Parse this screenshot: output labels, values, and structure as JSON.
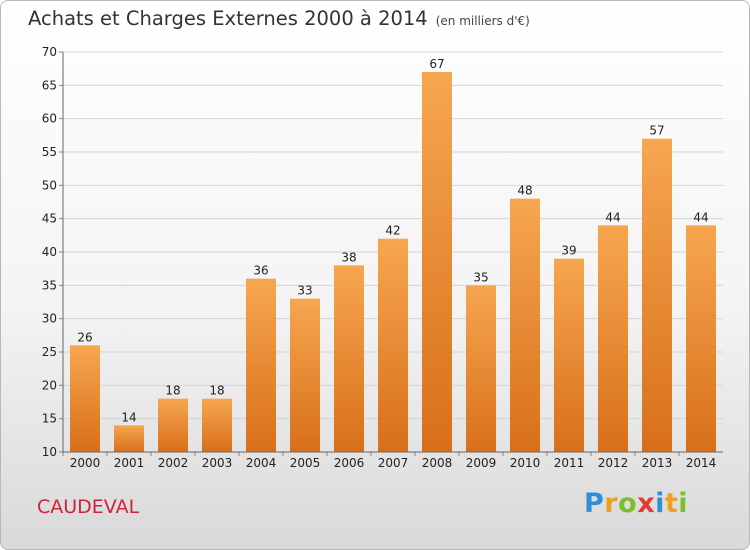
{
  "chart_data": {
    "type": "bar",
    "title": "Achats et Charges Externes 2000 à 2014",
    "subtitle": "(en milliers d'€)",
    "categories": [
      "2000",
      "2001",
      "2002",
      "2003",
      "2004",
      "2005",
      "2006",
      "2007",
      "2008",
      "2009",
      "2010",
      "2011",
      "2012",
      "2013",
      "2014"
    ],
    "values": [
      26,
      14,
      18,
      18,
      36,
      33,
      38,
      42,
      67,
      35,
      48,
      39,
      44,
      57,
      44
    ],
    "ylim": [
      10,
      70
    ],
    "yticks": [
      10,
      15,
      20,
      25,
      30,
      35,
      40,
      45,
      50,
      55,
      60,
      65,
      70
    ],
    "grid": true,
    "bar_color_top": "#f7a650",
    "bar_color_bottom": "#d86f1a"
  },
  "commune": "CAUDEVAL",
  "logo": {
    "letters": [
      "P",
      "r",
      "o",
      "x",
      "i",
      "t",
      "i"
    ],
    "colors": [
      "#2e8fd6",
      "#f0a020",
      "#7cbf2e",
      "#e53b2e",
      "#2e8fd6",
      "#f0a020",
      "#7cbf2e"
    ]
  }
}
